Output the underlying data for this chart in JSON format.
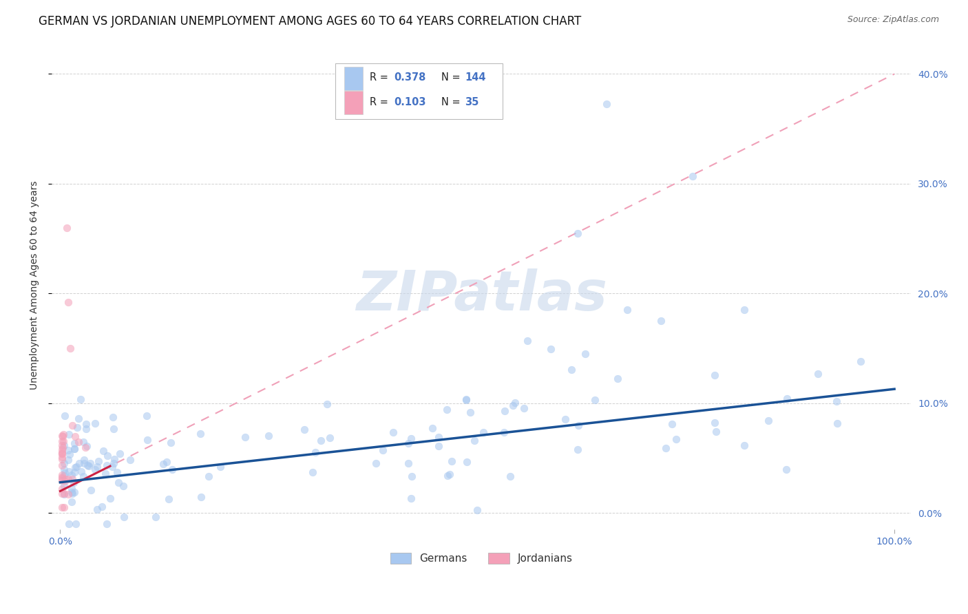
{
  "title": "GERMAN VS JORDANIAN UNEMPLOYMENT AMONG AGES 60 TO 64 YEARS CORRELATION CHART",
  "source": "Source: ZipAtlas.com",
  "ylabel": "Unemployment Among Ages 60 to 64 years",
  "watermark_text": "ZIPatlas",
  "legend": {
    "german_R": 0.378,
    "german_N": 144,
    "jordan_R": 0.103,
    "jordan_N": 35,
    "german_color": "#a8c8f0",
    "jordan_color": "#f4a0b8"
  },
  "german_line_color": "#1a5296",
  "jordan_solid_color": "#cc2244",
  "jordan_dash_color": "#f0a0b8",
  "background_color": "#ffffff",
  "grid_color": "#cccccc",
  "title_fontsize": 12,
  "axis_label_fontsize": 10,
  "tick_fontsize": 10,
  "scatter_size": 60,
  "scatter_alpha": 0.55,
  "right_ytick_color": "#4472c4",
  "xtick_color": "#4472c4",
  "ylim_low": -0.015,
  "ylim_high": 0.43,
  "xlim_low": -0.01,
  "xlim_high": 1.02
}
